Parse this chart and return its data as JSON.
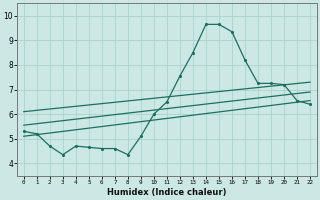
{
  "xlabel": "Humidex (Indice chaleur)",
  "x_ticks": [
    0,
    1,
    2,
    3,
    4,
    5,
    6,
    7,
    8,
    9,
    10,
    11,
    12,
    13,
    14,
    15,
    16,
    17,
    18,
    19,
    20,
    21,
    22
  ],
  "ylim": [
    3.5,
    10.5
  ],
  "xlim": [
    -0.5,
    22.5
  ],
  "bg_color": "#cce8e4",
  "grid_color": "#aad4cc",
  "line_color": "#1e6e60",
  "line_width": 0.9,
  "marker_size": 2.5,
  "curve1_x": [
    0,
    1,
    2,
    3,
    4,
    5,
    6,
    7,
    8,
    9,
    10,
    11,
    12,
    13,
    14,
    15,
    16,
    17,
    18,
    19,
    20,
    21,
    22
  ],
  "curve1_y": [
    5.3,
    5.2,
    4.7,
    4.35,
    4.7,
    4.65,
    4.6,
    4.6,
    4.35,
    5.1,
    6.0,
    6.5,
    7.55,
    8.5,
    9.65,
    9.65,
    9.35,
    8.2,
    7.25,
    7.25,
    7.2,
    6.55,
    6.4
  ],
  "curve2_x": [
    0,
    22
  ],
  "curve2_y": [
    6.1,
    7.3
  ],
  "curve3_x": [
    0,
    22
  ],
  "curve3_y": [
    5.55,
    6.9
  ],
  "curve4_x": [
    0,
    22
  ],
  "curve4_y": [
    5.1,
    6.55
  ],
  "yticks": [
    4,
    5,
    6,
    7,
    8,
    9,
    10
  ]
}
